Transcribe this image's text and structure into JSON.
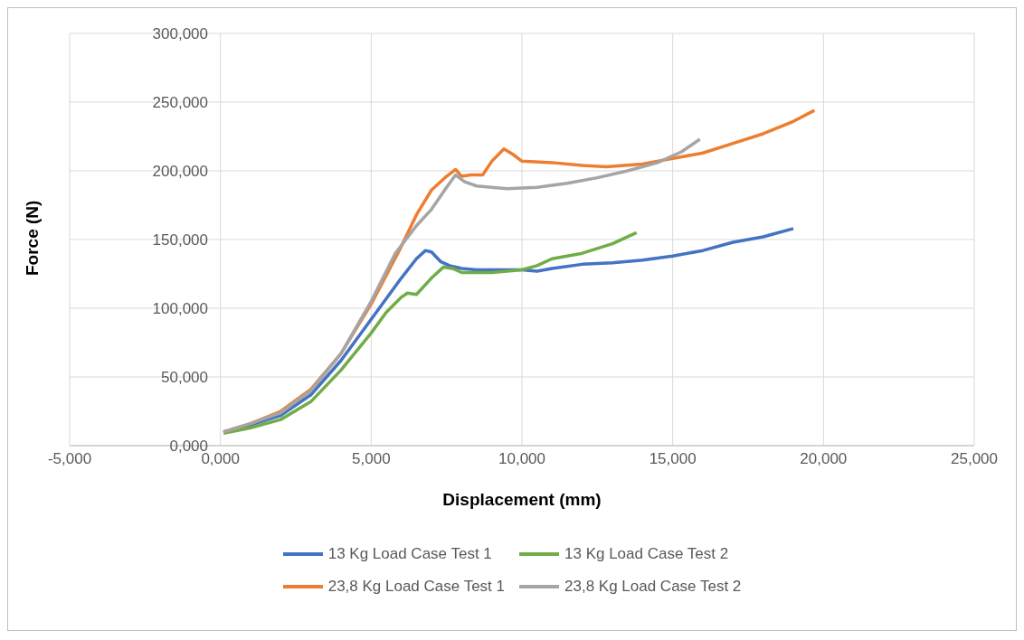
{
  "chart_data": {
    "type": "line",
    "xlabel": "Displacement (mm)",
    "ylabel": "Force (N)",
    "xlim": [
      -5,
      25
    ],
    "xticks": [
      {
        "value": -5,
        "label": "-5,000"
      },
      {
        "value": 0,
        "label": "0,000"
      },
      {
        "value": 5,
        "label": "5,000"
      },
      {
        "value": 10,
        "label": "10,000"
      },
      {
        "value": 15,
        "label": "15,000"
      },
      {
        "value": 20,
        "label": "20,000"
      },
      {
        "value": 25,
        "label": "25,000"
      }
    ],
    "ylim": [
      0,
      300
    ],
    "yticks": [
      {
        "value": 0,
        "label": "0,000"
      },
      {
        "value": 50,
        "label": "50,000"
      },
      {
        "value": 100,
        "label": "100,000"
      },
      {
        "value": 150,
        "label": "150,000"
      },
      {
        "value": 200,
        "label": "200,000"
      },
      {
        "value": 250,
        "label": "250,000"
      },
      {
        "value": 300,
        "label": "300,000"
      }
    ],
    "grid": true,
    "legend": "bottom",
    "marker": "none",
    "line_style": "solid",
    "series": [
      {
        "name": "13 Kg Load Case Test 1",
        "color": "#4472c4",
        "x": [
          0.1,
          1,
          2,
          3,
          4,
          5,
          6,
          6.5,
          6.8,
          7,
          7.3,
          7.6,
          8,
          8.5,
          9,
          10,
          10.5,
          11,
          12,
          13,
          14,
          15,
          16,
          17,
          18,
          19
        ],
        "values": [
          10,
          15,
          22,
          37,
          62,
          92,
          122,
          136,
          142,
          141,
          134,
          131,
          129,
          128,
          128,
          128,
          127,
          129,
          132,
          133,
          135,
          138,
          142,
          148,
          152,
          158
        ]
      },
      {
        "name": "13 Kg Load Case Test 2",
        "color": "#70ad47",
        "x": [
          0.1,
          1,
          2,
          3,
          4,
          5,
          5.5,
          6,
          6.2,
          6.5,
          7,
          7.4,
          7.7,
          8,
          9,
          10,
          10.5,
          11,
          12,
          13,
          13.8
        ],
        "values": [
          9,
          13,
          19,
          32,
          55,
          82,
          97,
          108,
          111,
          110,
          122,
          130,
          129,
          126,
          126,
          128,
          131,
          136,
          140,
          147,
          155
        ]
      },
      {
        "name": "23,8 Kg Load Case Test 1",
        "color": "#ed7d31",
        "x": [
          0.1,
          1,
          2,
          3,
          4,
          5,
          6,
          6.5,
          7,
          7.5,
          7.8,
          8,
          8.3,
          8.7,
          9,
          9.4,
          9.7,
          10,
          11,
          12,
          12.8,
          14,
          15,
          16,
          17,
          18,
          19,
          19.7
        ],
        "values": [
          10,
          16,
          25,
          41,
          67,
          103,
          145,
          168,
          186,
          196,
          201,
          196,
          197,
          197,
          207,
          216,
          212,
          207,
          206,
          204,
          203,
          205,
          209,
          213,
          220,
          227,
          236,
          244
        ]
      },
      {
        "name": "23,8 Kg Load Case Test 2",
        "color": "#a5a5a5",
        "x": [
          0.1,
          1,
          2,
          3,
          4,
          5,
          5.8,
          6.5,
          7,
          7.5,
          7.8,
          8.1,
          8.5,
          9.5,
          10.5,
          11.5,
          12.5,
          13.5,
          14.5,
          15.3,
          15.9
        ],
        "values": [
          10,
          16,
          24,
          40,
          67,
          105,
          140,
          160,
          172,
          188,
          197,
          192,
          189,
          187,
          188,
          191,
          195,
          200,
          206,
          214,
          223
        ]
      }
    ]
  }
}
